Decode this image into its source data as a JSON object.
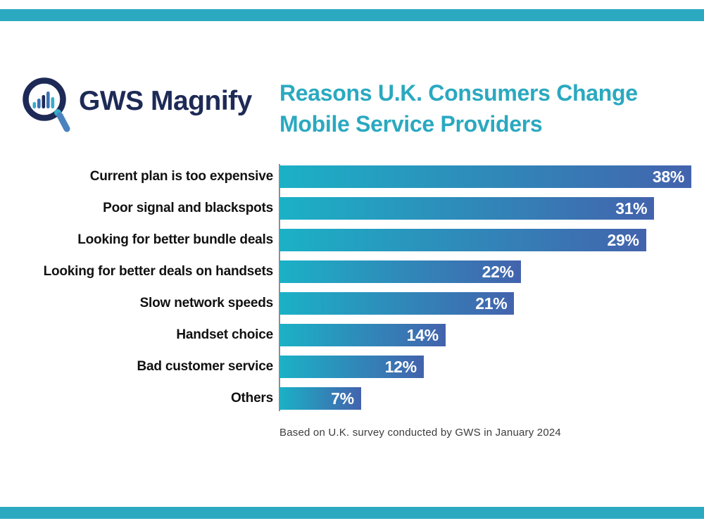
{
  "page": {
    "background": "#FFFFFF"
  },
  "header": {
    "logo": {
      "brand": "GWS Magnify",
      "icon": "magnifier-with-bar-chart"
    },
    "title_line1": "Reasons U.K. Consumers Change",
    "title_line2": "Mobile Service Providers"
  },
  "chart_data": {
    "type": "bar",
    "orientation": "horizontal",
    "title": "Reasons U.K. Consumers Change Mobile Service Providers",
    "unit": "%",
    "categories": [
      "Current plan is too expensive",
      "Poor signal and blackspots",
      "Looking for better bundle deals",
      "Looking for better deals on handsets",
      "Slow network speeds",
      "Handset choice",
      "Bad customer service",
      "Others"
    ],
    "values": [
      38,
      31,
      29,
      22,
      21,
      14,
      12,
      7
    ],
    "xlim": [
      0,
      38
    ],
    "grid": false,
    "legend": false,
    "value_label_style": "inside-end white bold",
    "bars": [
      {
        "label": "Current plan is too expensive",
        "value": 38,
        "display_value": "38%",
        "width_pct": 100
      },
      {
        "label": "Poor signal and blackspots",
        "value": 31,
        "display_value": "31%",
        "width_pct": 91
      },
      {
        "label": "Looking for better bundle deals",
        "value": 29,
        "display_value": "29%",
        "width_pct": 89
      },
      {
        "label": "Looking for better deals on handsets",
        "value": 22,
        "display_value": "22%",
        "width_pct": 58.6
      },
      {
        "label": "Slow network speeds",
        "value": 21,
        "display_value": "21%",
        "width_pct": 57
      },
      {
        "label": "Handset choice",
        "value": 14,
        "display_value": "14%",
        "width_pct": 40.3
      },
      {
        "label": "Bad customer service",
        "value": 12,
        "display_value": "12%",
        "width_pct": 35
      },
      {
        "label": "Others",
        "value": 7,
        "display_value": "7%",
        "width_pct": 19.8
      }
    ]
  },
  "footer": {
    "note": "Based on U.K. survey conducted by GWS in January 2024"
  },
  "colors": {
    "accent_teal": "#2AA9C0",
    "bar_gradient_start": "#1BB1C6",
    "bar_gradient_end": "#4363AD",
    "brand_navy": "#1E2A56",
    "logo_handle_blue": "#4A82BE",
    "logo_bar_teal": "#35AECB",
    "logo_bar_blue": "#3C72B5",
    "label_text": "#111111",
    "value_text": "#FFFFFF",
    "footer_text": "#3C3C3C",
    "axis_line": "#8A8F99"
  }
}
